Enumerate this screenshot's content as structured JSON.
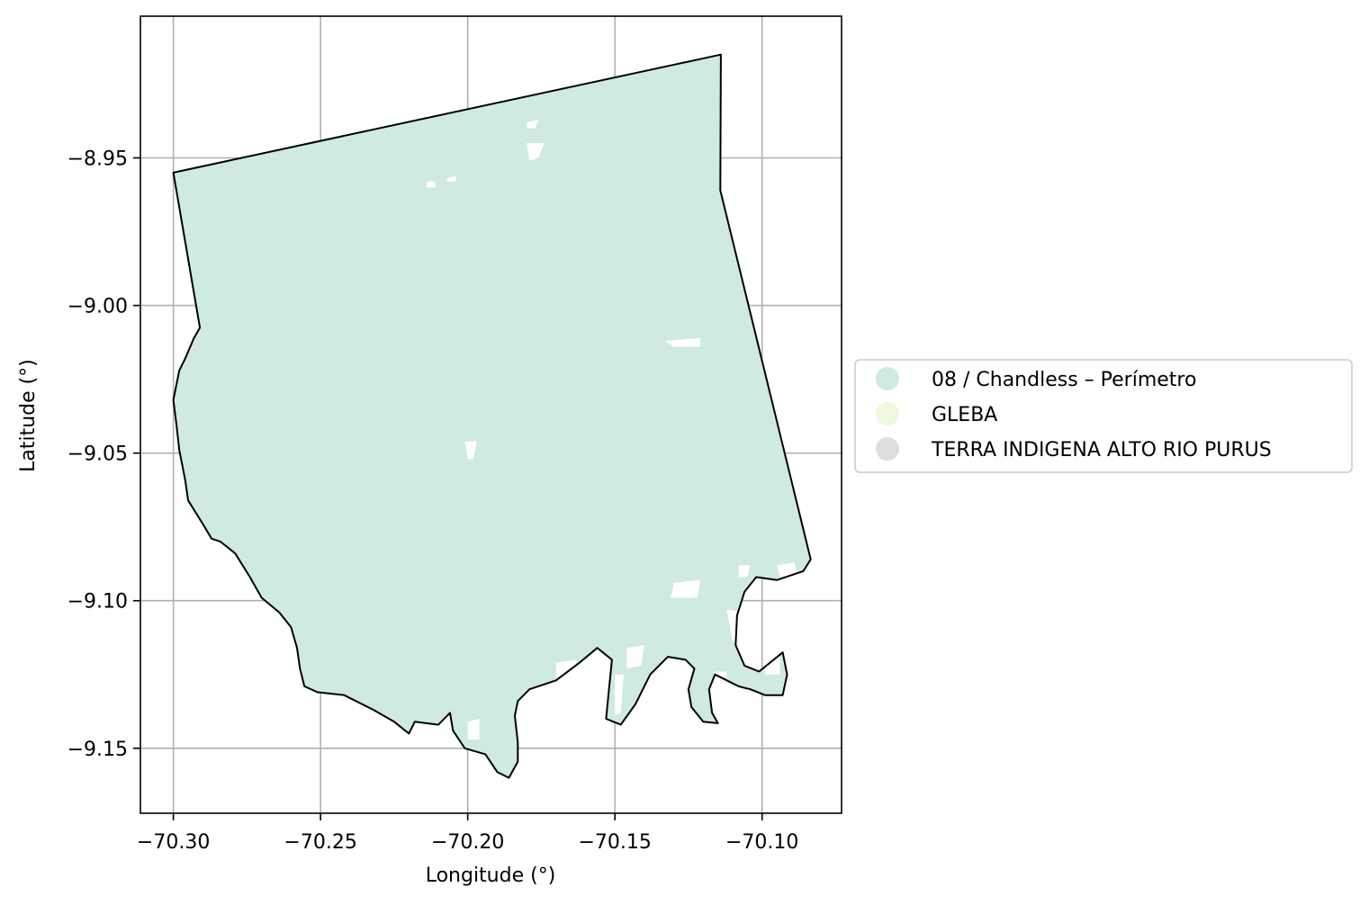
{
  "map": {
    "xlabel": "Longitude (°)",
    "ylabel": "Latitude (°)",
    "x_ticks": [
      {
        "value": -70.3,
        "label": "−70.30"
      },
      {
        "value": -70.25,
        "label": "−70.25"
      },
      {
        "value": -70.2,
        "label": "−70.20"
      },
      {
        "value": -70.15,
        "label": "−70.15"
      },
      {
        "value": -70.1,
        "label": "−70.10"
      }
    ],
    "y_ticks": [
      {
        "value": -8.95,
        "label": "−8.95"
      },
      {
        "value": -9.0,
        "label": "−9.00"
      },
      {
        "value": -9.05,
        "label": "−9.05"
      },
      {
        "value": -9.1,
        "label": "−9.10"
      },
      {
        "value": -9.15,
        "label": "−9.15"
      }
    ],
    "xlim": [
      -70.3112,
      -70.073
    ],
    "ylim": [
      -9.172,
      -8.902
    ],
    "grid": true,
    "legend_position": "center-left outside, right of map",
    "legend": [
      {
        "label": "08 / Chandless – Perímetro",
        "color": "#cfeadf"
      },
      {
        "label": "GLEBA",
        "color": "#eef8dc"
      },
      {
        "label": "TERRA INDIGENA ALTO RIO PURUS",
        "color": "#dedede"
      }
    ],
    "polygon": {
      "fill": "#cfeadf",
      "edge": "#000000",
      "outline": [
        [
          -70.3,
          -8.955
        ],
        [
          -70.114,
          -8.915
        ],
        [
          -70.1142,
          -8.961
        ],
        [
          -70.0835,
          -9.086
        ],
        [
          -70.086,
          -9.09
        ],
        [
          -70.095,
          -9.093
        ],
        [
          -70.102,
          -9.092
        ],
        [
          -70.106,
          -9.097
        ],
        [
          -70.1085,
          -9.105
        ],
        [
          -70.109,
          -9.115
        ],
        [
          -70.106,
          -9.122
        ],
        [
          -70.101,
          -9.124
        ],
        [
          -70.093,
          -9.1175
        ],
        [
          -70.0915,
          -9.125
        ],
        [
          -70.093,
          -9.132
        ],
        [
          -70.099,
          -9.132
        ],
        [
          -70.104,
          -9.13
        ],
        [
          -70.108,
          -9.129
        ],
        [
          -70.112,
          -9.127
        ],
        [
          -70.116,
          -9.125
        ],
        [
          -70.118,
          -9.13
        ],
        [
          -70.117,
          -9.138
        ],
        [
          -70.115,
          -9.1415
        ],
        [
          -70.12,
          -9.141
        ],
        [
          -70.124,
          -9.136
        ],
        [
          -70.125,
          -9.13
        ],
        [
          -70.123,
          -9.123
        ],
        [
          -70.126,
          -9.12
        ],
        [
          -70.132,
          -9.119
        ],
        [
          -70.138,
          -9.125
        ],
        [
          -70.143,
          -9.135
        ],
        [
          -70.148,
          -9.142
        ],
        [
          -70.153,
          -9.14
        ],
        [
          -70.152,
          -9.13
        ],
        [
          -70.151,
          -9.12
        ],
        [
          -70.156,
          -9.116
        ],
        [
          -70.162,
          -9.121
        ],
        [
          -70.17,
          -9.127
        ],
        [
          -70.179,
          -9.13
        ],
        [
          -70.183,
          -9.134
        ],
        [
          -70.184,
          -9.139
        ],
        [
          -70.183,
          -9.148
        ],
        [
          -70.183,
          -9.1545
        ],
        [
          -70.186,
          -9.16
        ],
        [
          -70.19,
          -9.158
        ],
        [
          -70.194,
          -9.152
        ],
        [
          -70.201,
          -9.15
        ],
        [
          -70.205,
          -9.144
        ],
        [
          -70.206,
          -9.138
        ],
        [
          -70.21,
          -9.142
        ],
        [
          -70.218,
          -9.141
        ],
        [
          -70.22,
          -9.145
        ],
        [
          -70.225,
          -9.141
        ],
        [
          -70.232,
          -9.137
        ],
        [
          -70.242,
          -9.132
        ],
        [
          -70.251,
          -9.131
        ],
        [
          -70.2555,
          -9.129
        ],
        [
          -70.257,
          -9.123
        ],
        [
          -70.258,
          -9.116
        ],
        [
          -70.26,
          -9.109
        ],
        [
          -70.264,
          -9.104
        ],
        [
          -70.27,
          -9.099
        ],
        [
          -70.274,
          -9.092
        ],
        [
          -70.279,
          -9.084
        ],
        [
          -70.284,
          -9.08
        ],
        [
          -70.287,
          -9.079
        ],
        [
          -70.29,
          -9.074
        ],
        [
          -70.295,
          -9.066
        ],
        [
          -70.296,
          -9.059
        ],
        [
          -70.298,
          -9.049
        ],
        [
          -70.299,
          -9.04
        ],
        [
          -70.3,
          -9.032
        ],
        [
          -70.298,
          -9.022
        ],
        [
          -70.296,
          -9.018
        ],
        [
          -70.293,
          -9.011
        ],
        [
          -70.291,
          -9.0075
        ]
      ]
    },
    "holes": [
      [
        [
          -70.18,
          -8.938
        ],
        [
          -70.176,
          -8.937
        ],
        [
          -70.177,
          -8.94
        ],
        [
          -70.18,
          -8.94
        ]
      ],
      [
        [
          -70.18,
          -8.945
        ],
        [
          -70.174,
          -8.945
        ],
        [
          -70.176,
          -8.95
        ],
        [
          -70.179,
          -8.951
        ]
      ],
      [
        [
          -70.214,
          -8.958
        ],
        [
          -70.211,
          -8.958
        ],
        [
          -70.211,
          -8.96
        ],
        [
          -70.214,
          -8.96
        ]
      ],
      [
        [
          -70.207,
          -8.957
        ],
        [
          -70.204,
          -8.956
        ],
        [
          -70.204,
          -8.958
        ],
        [
          -70.207,
          -8.958
        ]
      ],
      [
        [
          -70.133,
          -9.012
        ],
        [
          -70.121,
          -9.011
        ],
        [
          -70.121,
          -9.014
        ],
        [
          -70.13,
          -9.014
        ]
      ],
      [
        [
          -70.201,
          -9.046
        ],
        [
          -70.197,
          -9.046
        ],
        [
          -70.198,
          -9.052
        ],
        [
          -70.2,
          -9.052
        ]
      ],
      [
        [
          -70.13,
          -9.094
        ],
        [
          -70.121,
          -9.093
        ],
        [
          -70.122,
          -9.099
        ],
        [
          -70.131,
          -9.099
        ]
      ],
      [
        [
          -70.17,
          -9.121
        ],
        [
          -70.163,
          -9.12
        ],
        [
          -70.164,
          -9.127
        ],
        [
          -70.17,
          -9.128
        ]
      ],
      [
        [
          -70.161,
          -9.128
        ],
        [
          -70.157,
          -9.127
        ],
        [
          -70.158,
          -9.13
        ],
        [
          -70.161,
          -9.13
        ]
      ],
      [
        [
          -70.2,
          -9.141
        ],
        [
          -70.196,
          -9.14
        ],
        [
          -70.196,
          -9.147
        ],
        [
          -70.2,
          -9.147
        ]
      ],
      [
        [
          -70.146,
          -9.116
        ],
        [
          -70.14,
          -9.115
        ],
        [
          -70.141,
          -9.122
        ],
        [
          -70.146,
          -9.123
        ]
      ],
      [
        [
          -70.15,
          -9.125
        ],
        [
          -70.147,
          -9.125
        ],
        [
          -70.148,
          -9.138
        ],
        [
          -70.15,
          -9.139
        ]
      ],
      [
        [
          -70.112,
          -9.103
        ],
        [
          -70.105,
          -9.104
        ],
        [
          -70.105,
          -9.114
        ],
        [
          -70.11,
          -9.114
        ]
      ],
      [
        [
          -70.105,
          -9.11
        ],
        [
          -70.102,
          -9.11
        ],
        [
          -70.102,
          -9.115
        ],
        [
          -70.105,
          -9.115
        ]
      ],
      [
        [
          -70.099,
          -9.119
        ],
        [
          -70.094,
          -9.119
        ],
        [
          -70.094,
          -9.125
        ],
        [
          -70.099,
          -9.125
        ]
      ],
      [
        [
          -70.095,
          -9.088
        ],
        [
          -70.089,
          -9.087
        ],
        [
          -70.088,
          -9.091
        ],
        [
          -70.094,
          -9.092
        ]
      ],
      [
        [
          -70.108,
          -9.088
        ],
        [
          -70.104,
          -9.088
        ],
        [
          -70.105,
          -9.092
        ],
        [
          -70.108,
          -9.092
        ]
      ],
      [
        [
          -70.13,
          -9.128
        ],
        [
          -70.125,
          -9.127
        ],
        [
          -70.126,
          -9.13
        ],
        [
          -70.13,
          -9.13
        ]
      ],
      [
        [
          -70.116,
          -9.124
        ],
        [
          -70.112,
          -9.124
        ],
        [
          -70.112,
          -9.126
        ],
        [
          -70.116,
          -9.126
        ]
      ]
    ]
  }
}
